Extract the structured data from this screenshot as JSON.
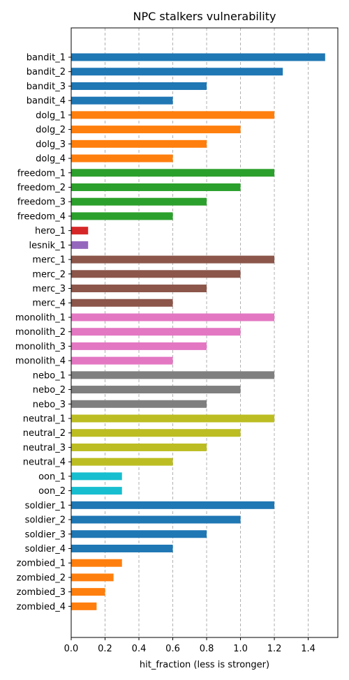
{
  "chart_data": {
    "type": "bar",
    "orientation": "horizontal",
    "title": "NPC stalkers vulnerability",
    "xlabel": "hit_fraction (less is stronger)",
    "ylabel": "",
    "xlim": [
      0,
      1.575
    ],
    "xticks": [
      0.0,
      0.2,
      0.4,
      0.6,
      0.8,
      1.0,
      1.2,
      1.4
    ],
    "xtick_labels": [
      "0.0",
      "0.2",
      "0.4",
      "0.6",
      "0.8",
      "1.0",
      "1.2",
      "1.4"
    ],
    "grid": {
      "x": true,
      "style": "dashed"
    },
    "categories": [
      "bandit_1",
      "bandit_2",
      "bandit_3",
      "bandit_4",
      "dolg_1",
      "dolg_2",
      "dolg_3",
      "dolg_4",
      "freedom_1",
      "freedom_2",
      "freedom_3",
      "freedom_4",
      "hero_1",
      "lesnik_1",
      "merc_1",
      "merc_2",
      "merc_3",
      "merc_4",
      "monolith_1",
      "monolith_2",
      "monolith_3",
      "monolith_4",
      "nebo_1",
      "nebo_2",
      "nebo_3",
      "neutral_1",
      "neutral_2",
      "neutral_3",
      "neutral_4",
      "oon_1",
      "oon_2",
      "soldier_1",
      "soldier_2",
      "soldier_3",
      "soldier_4",
      "zombied_1",
      "zombied_2",
      "zombied_3",
      "zombied_4"
    ],
    "values": [
      1.5,
      1.25,
      0.8,
      0.6,
      1.2,
      1.0,
      0.8,
      0.6,
      1.2,
      1.0,
      0.8,
      0.6,
      0.1,
      0.1,
      1.2,
      1.0,
      0.8,
      0.6,
      1.2,
      1.0,
      0.8,
      0.6,
      1.2,
      1.0,
      0.8,
      1.2,
      1.0,
      0.8,
      0.6,
      0.3,
      0.3,
      1.2,
      1.0,
      0.8,
      0.6,
      0.3,
      0.25,
      0.2,
      0.15
    ],
    "colors": [
      "#1f77b4",
      "#1f77b4",
      "#1f77b4",
      "#1f77b4",
      "#ff7f0e",
      "#ff7f0e",
      "#ff7f0e",
      "#ff7f0e",
      "#2ca02c",
      "#2ca02c",
      "#2ca02c",
      "#2ca02c",
      "#d62728",
      "#9467bd",
      "#8c564b",
      "#8c564b",
      "#8c564b",
      "#8c564b",
      "#e377c2",
      "#e377c2",
      "#e377c2",
      "#e377c2",
      "#7f7f7f",
      "#7f7f7f",
      "#7f7f7f",
      "#bcbd22",
      "#bcbd22",
      "#bcbd22",
      "#bcbd22",
      "#17becf",
      "#17becf",
      "#1f77b4",
      "#1f77b4",
      "#1f77b4",
      "#1f77b4",
      "#ff7f0e",
      "#ff7f0e",
      "#ff7f0e",
      "#ff7f0e"
    ]
  }
}
